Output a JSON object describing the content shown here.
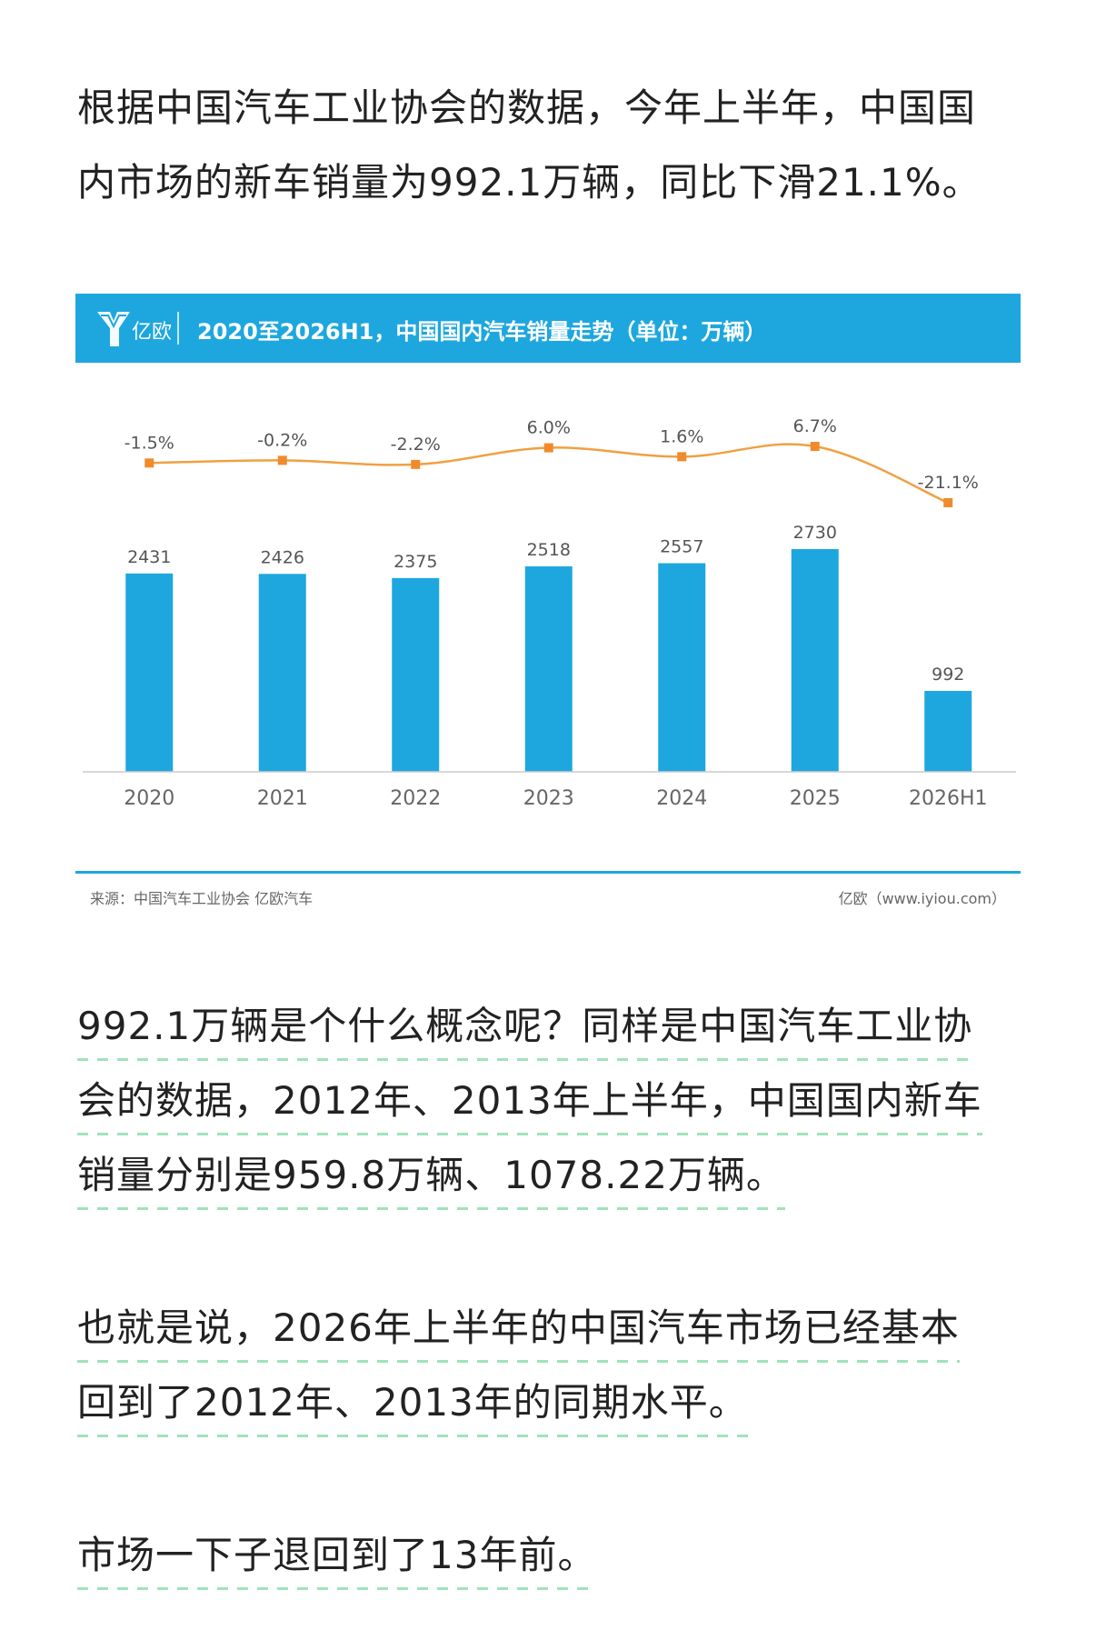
{
  "paragraphs": {
    "intro_line1": "根据中国汽车工业协会的数据，今年上半年，中国国",
    "intro_line2": "内市场的新车销量为992.1万辆，同比下滑21.1%。",
    "concept_line1": "992.1万辆是个什么概念呢？同样是中国汽车工业协",
    "concept_line2": "会的数据，2012年、2013年上半年，中国国内新车",
    "concept_line3": "销量分别是959.8万辆、1078.22万辆。",
    "meaning_line1": "也就是说，2026年上半年的中国汽车市场已经基本",
    "meaning_line2": "回到了2012年、2013年的同期水平。",
    "back_line1": "市场一下子退回到了13年前。"
  },
  "chart_header": {
    "logo_text": "亿欧",
    "title": "2020至2026H1，中国国内汽车销量走势（单位：万辆）"
  },
  "chart_footer": {
    "source": "来源：中国汽车工业协会 亿欧汽车",
    "credit": "亿欧（www.iyiou.com）"
  },
  "colors": {
    "bar": "#1ea7de",
    "line": "#f0a042",
    "marker": "#ef8b2c",
    "banner": "#1ea7de"
  },
  "chart_data": {
    "type": "bar",
    "title": "2020至2026H1，中国国内汽车销量走势（单位：万辆）",
    "categories": [
      "2020",
      "2021",
      "2022",
      "2023",
      "2024",
      "2025",
      "2026H1"
    ],
    "series": [
      {
        "type": "bar",
        "values": [
          2431,
          2426,
          2375,
          2518,
          2557,
          2730,
          992
        ],
        "data_labels": [
          "2431",
          "2426",
          "2375",
          "2518",
          "2557",
          "2730",
          "992"
        ]
      },
      {
        "type": "line",
        "values": [
          -1.5,
          -0.2,
          -2.2,
          6.0,
          1.6,
          6.7,
          -21.1
        ],
        "data_labels": [
          "-1.5%",
          "-0.2%",
          "-2.2%",
          "6.0%",
          "1.6%",
          "6.7%",
          "-21.1%"
        ]
      }
    ],
    "ylim": [
      0,
      2730
    ],
    "grid": false,
    "legend": "none"
  }
}
